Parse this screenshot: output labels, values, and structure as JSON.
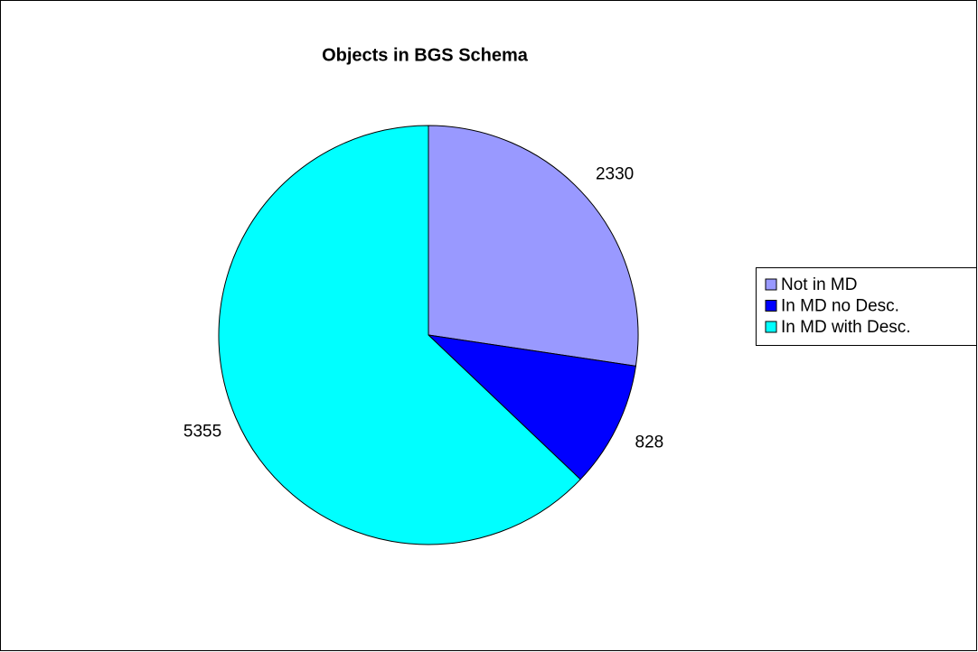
{
  "chart_data": {
    "type": "pie",
    "title": "Objects in BGS Schema",
    "categories": [
      "Not in MD",
      "In MD no Desc.",
      "In MD with Desc."
    ],
    "values": [
      2330,
      828,
      5355
    ],
    "colors": [
      "#9999ff",
      "#0000ff",
      "#00ffff"
    ],
    "legend": "right"
  }
}
